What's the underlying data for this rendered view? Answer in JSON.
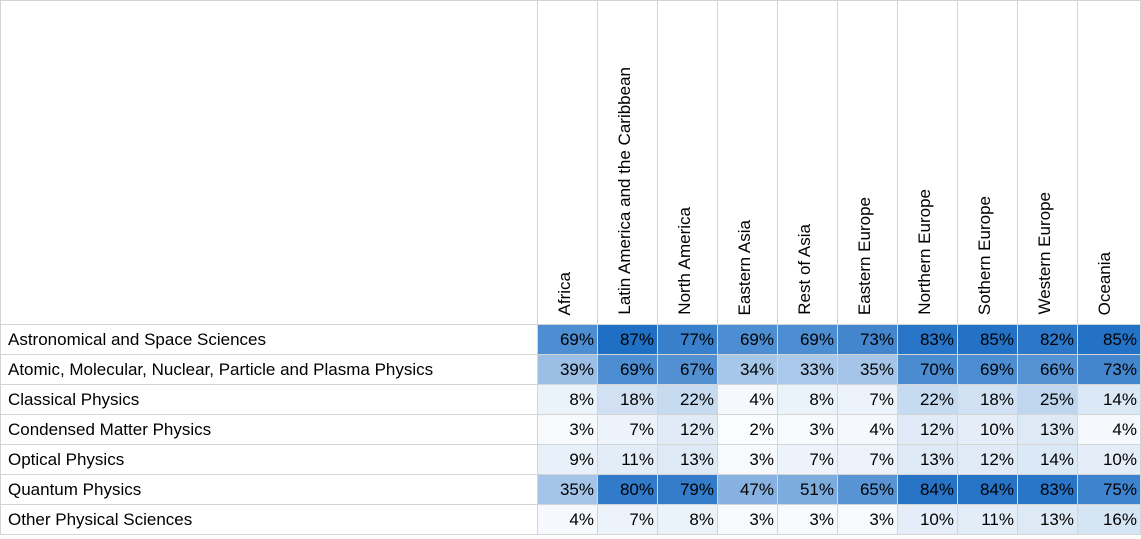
{
  "columns": [
    "Africa",
    "Latin America and the Caribbean",
    "North America",
    "Eastern Asia",
    "Rest of Asia",
    "Eastern Europe",
    "Northern Europe",
    "Sothern Europe",
    "Western Europe",
    "Oceania"
  ],
  "rows": [
    {
      "label": "Astronomical and Space Sciences",
      "values": [
        "69%",
        "87%",
        "77%",
        "69%",
        "69%",
        "73%",
        "83%",
        "85%",
        "82%",
        "85%"
      ],
      "levels": [
        69,
        87,
        77,
        69,
        69,
        73,
        83,
        85,
        82,
        85
      ]
    },
    {
      "label": "Atomic, Molecular, Nuclear, Particle and Plasma Physics",
      "values": [
        "39%",
        "69%",
        "67%",
        "34%",
        "33%",
        "35%",
        "70%",
        "69%",
        "66%",
        "73%"
      ],
      "levels": [
        39,
        69,
        67,
        34,
        33,
        35,
        70,
        69,
        66,
        73
      ]
    },
    {
      "label": "Classical Physics",
      "values": [
        "8%",
        "18%",
        "22%",
        "4%",
        "8%",
        "7%",
        "22%",
        "18%",
        "25%",
        "14%"
      ],
      "levels": [
        8,
        18,
        22,
        4,
        8,
        7,
        22,
        18,
        25,
        14
      ]
    },
    {
      "label": "Condensed Matter Physics",
      "values": [
        "3%",
        "7%",
        "12%",
        "2%",
        "3%",
        "4%",
        "12%",
        "10%",
        "13%",
        "4%"
      ],
      "levels": [
        3,
        7,
        12,
        2,
        3,
        4,
        12,
        10,
        13,
        4
      ]
    },
    {
      "label": "Optical Physics",
      "values": [
        "9%",
        "11%",
        "13%",
        "3%",
        "7%",
        "7%",
        "13%",
        "12%",
        "14%",
        "10%"
      ],
      "levels": [
        9,
        11,
        13,
        3,
        7,
        7,
        13,
        12,
        14,
        10
      ]
    },
    {
      "label": "Quantum Physics",
      "values": [
        "35%",
        "80%",
        "79%",
        "47%",
        "51%",
        "65%",
        "84%",
        "84%",
        "83%",
        "75%"
      ],
      "levels": [
        35,
        80,
        79,
        47,
        51,
        65,
        84,
        84,
        83,
        75
      ]
    },
    {
      "label": "Other Physical Sciences",
      "values": [
        "4%",
        "7%",
        "8%",
        "3%",
        "3%",
        "3%",
        "10%",
        "11%",
        "13%",
        "16%"
      ],
      "levels": [
        4,
        7,
        8,
        3,
        3,
        3,
        10,
        11,
        13,
        16
      ]
    }
  ],
  "scale": {
    "low_color": "#ffffff",
    "high_color": "#1f6fc5"
  }
}
